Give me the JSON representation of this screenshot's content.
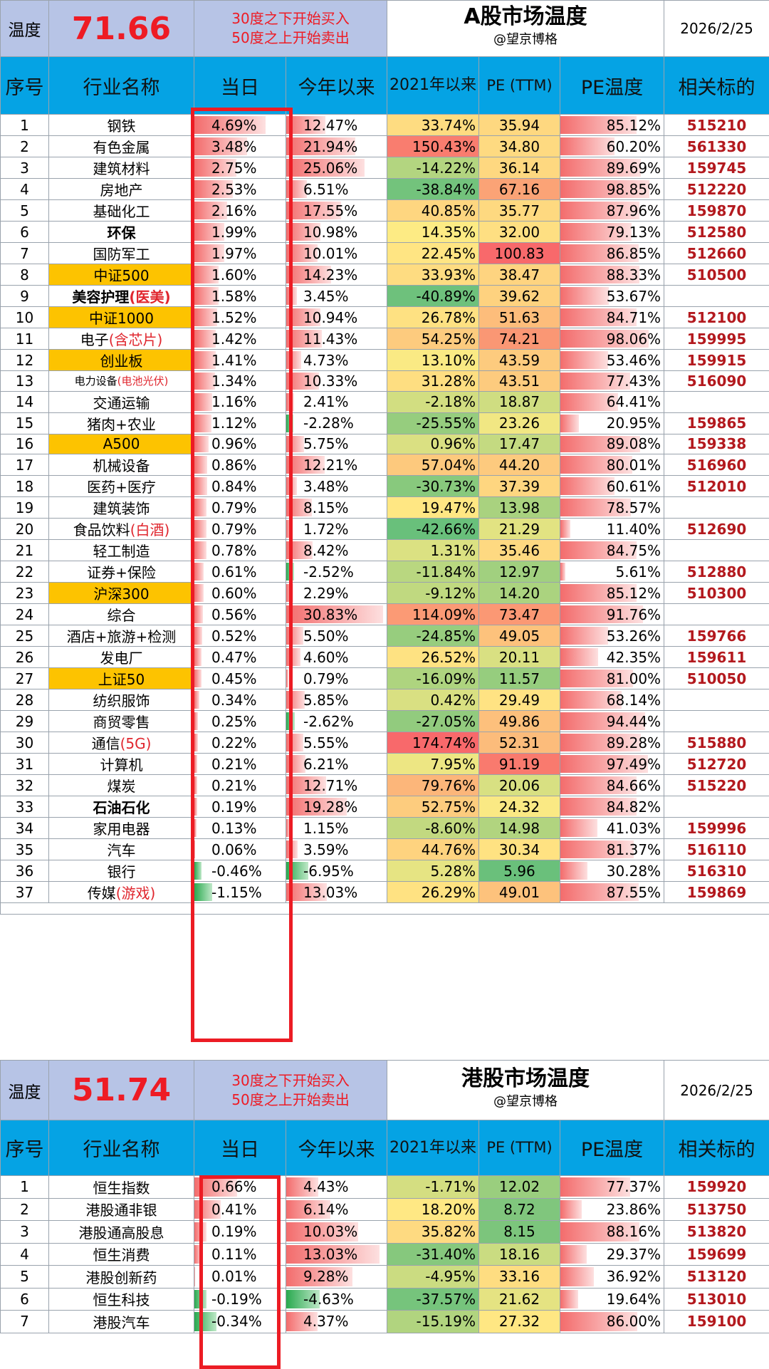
{
  "a_share": {
    "temp_label": "温度",
    "temperature": "71.66",
    "rule_line1": "30度之下开始买入",
    "rule_line2": "50度之上开始卖出",
    "title": "A股市场温度",
    "author": "@望京博格",
    "date": "2026/2/25",
    "headers": [
      "序号",
      "行业名称",
      "当日",
      "今年以来",
      "2021年以来",
      "PE (TTM)",
      "PE温度",
      "相关标的"
    ],
    "rows": [
      {
        "idx": "1",
        "name": "钢铁",
        "hl": "",
        "style": "",
        "day": "4.69%",
        "day_v": 4.69,
        "ytd": "12.47%",
        "ytd_v": 12.47,
        "y21": "33.74%",
        "y21_v": 33.74,
        "pe": "35.94",
        "pe_v": 35.94,
        "pet": "85.12%",
        "pet_v": 85.12,
        "code": "515210"
      },
      {
        "idx": "2",
        "name": "有色金属",
        "hl": "",
        "style": "",
        "day": "3.48%",
        "day_v": 3.48,
        "ytd": "21.94%",
        "ytd_v": 21.94,
        "y21": "150.43%",
        "y21_v": 150.43,
        "pe": "34.80",
        "pe_v": 34.8,
        "pet": "60.20%",
        "pet_v": 60.2,
        "code": "561330"
      },
      {
        "idx": "3",
        "name": "建筑材料",
        "hl": "",
        "style": "",
        "day": "2.75%",
        "day_v": 2.75,
        "ytd": "25.06%",
        "ytd_v": 25.06,
        "y21": "-14.22%",
        "y21_v": -14.22,
        "pe": "36.14",
        "pe_v": 36.14,
        "pet": "89.69%",
        "pet_v": 89.69,
        "code": "159745"
      },
      {
        "idx": "4",
        "name": "房地产",
        "hl": "",
        "style": "",
        "day": "2.53%",
        "day_v": 2.53,
        "ytd": "6.51%",
        "ytd_v": 6.51,
        "y21": "-38.84%",
        "y21_v": -38.84,
        "pe": "67.16",
        "pe_v": 67.16,
        "pet": "98.85%",
        "pet_v": 98.85,
        "code": "512220"
      },
      {
        "idx": "5",
        "name": "基础化工",
        "hl": "",
        "style": "",
        "day": "2.16%",
        "day_v": 2.16,
        "ytd": "17.55%",
        "ytd_v": 17.55,
        "y21": "40.85%",
        "y21_v": 40.85,
        "pe": "35.77",
        "pe_v": 35.77,
        "pet": "87.96%",
        "pet_v": 87.96,
        "code": "159870"
      },
      {
        "idx": "6",
        "name": "环保",
        "hl": "",
        "style": "bold",
        "day": "1.99%",
        "day_v": 1.99,
        "ytd": "10.98%",
        "ytd_v": 10.98,
        "y21": "14.35%",
        "y21_v": 14.35,
        "pe": "32.00",
        "pe_v": 32.0,
        "pet": "79.13%",
        "pet_v": 79.13,
        "code": "512580"
      },
      {
        "idx": "7",
        "name": "国防军工",
        "hl": "",
        "style": "",
        "day": "1.97%",
        "day_v": 1.97,
        "ytd": "10.01%",
        "ytd_v": 10.01,
        "y21": "22.45%",
        "y21_v": 22.45,
        "pe": "100.83",
        "pe_v": 100.83,
        "pet": "86.85%",
        "pet_v": 86.85,
        "code": "512660"
      },
      {
        "idx": "8",
        "name": "中证500",
        "hl": "",
        "style": "orange",
        "day": "1.60%",
        "day_v": 1.6,
        "ytd": "14.23%",
        "ytd_v": 14.23,
        "y21": "33.93%",
        "y21_v": 33.93,
        "pe": "38.47",
        "pe_v": 38.47,
        "pet": "88.33%",
        "pet_v": 88.33,
        "code": "510500"
      },
      {
        "idx": "9",
        "name": "美容护理",
        "hl": "(医美)",
        "style": "bold",
        "day": "1.58%",
        "day_v": 1.58,
        "ytd": "3.45%",
        "ytd_v": 3.45,
        "y21": "-40.89%",
        "y21_v": -40.89,
        "pe": "39.62",
        "pe_v": 39.62,
        "pet": "53.67%",
        "pet_v": 53.67,
        "code": ""
      },
      {
        "idx": "10",
        "name": "中证1000",
        "hl": "",
        "style": "orange",
        "day": "1.52%",
        "day_v": 1.52,
        "ytd": "10.94%",
        "ytd_v": 10.94,
        "y21": "26.78%",
        "y21_v": 26.78,
        "pe": "51.63",
        "pe_v": 51.63,
        "pet": "84.71%",
        "pet_v": 84.71,
        "code": "512100"
      },
      {
        "idx": "11",
        "name": "电子",
        "hl": "(含芯片)",
        "style": "",
        "day": "1.42%",
        "day_v": 1.42,
        "ytd": "11.43%",
        "ytd_v": 11.43,
        "y21": "54.25%",
        "y21_v": 54.25,
        "pe": "74.21",
        "pe_v": 74.21,
        "pet": "98.06%",
        "pet_v": 98.06,
        "code": "159995"
      },
      {
        "idx": "12",
        "name": "创业板",
        "hl": "",
        "style": "orange",
        "day": "1.41%",
        "day_v": 1.41,
        "ytd": "4.73%",
        "ytd_v": 4.73,
        "y21": "13.10%",
        "y21_v": 13.1,
        "pe": "43.59",
        "pe_v": 43.59,
        "pet": "53.46%",
        "pet_v": 53.46,
        "code": "159915"
      },
      {
        "idx": "13",
        "name": "电力设备",
        "hl": "(电池光伏)",
        "style": "tiny",
        "day": "1.34%",
        "day_v": 1.34,
        "ytd": "10.33%",
        "ytd_v": 10.33,
        "y21": "31.28%",
        "y21_v": 31.28,
        "pe": "43.51",
        "pe_v": 43.51,
        "pet": "77.43%",
        "pet_v": 77.43,
        "code": "516090"
      },
      {
        "idx": "14",
        "name": "交通运输",
        "hl": "",
        "style": "",
        "day": "1.16%",
        "day_v": 1.16,
        "ytd": "2.41%",
        "ytd_v": 2.41,
        "y21": "-2.18%",
        "y21_v": -2.18,
        "pe": "18.87",
        "pe_v": 18.87,
        "pet": "64.41%",
        "pet_v": 64.41,
        "code": ""
      },
      {
        "idx": "15",
        "name": "猪肉+农业",
        "hl": "",
        "style": "",
        "day": "1.12%",
        "day_v": 1.12,
        "ytd": "-2.28%",
        "ytd_v": -2.28,
        "y21": "-25.55%",
        "y21_v": -25.55,
        "pe": "23.26",
        "pe_v": 23.26,
        "pet": "20.95%",
        "pet_v": 20.95,
        "code": "159865"
      },
      {
        "idx": "16",
        "name": "A500",
        "hl": "",
        "style": "orange",
        "day": "0.96%",
        "day_v": 0.96,
        "ytd": "5.75%",
        "ytd_v": 5.75,
        "y21": "0.96%",
        "y21_v": 0.96,
        "pe": "17.47",
        "pe_v": 17.47,
        "pet": "89.08%",
        "pet_v": 89.08,
        "code": "159338"
      },
      {
        "idx": "17",
        "name": "机械设备",
        "hl": "",
        "style": "",
        "day": "0.86%",
        "day_v": 0.86,
        "ytd": "12.21%",
        "ytd_v": 12.21,
        "y21": "57.04%",
        "y21_v": 57.04,
        "pe": "44.20",
        "pe_v": 44.2,
        "pet": "80.01%",
        "pet_v": 80.01,
        "code": "516960"
      },
      {
        "idx": "18",
        "name": "医药+医疗",
        "hl": "",
        "style": "",
        "day": "0.84%",
        "day_v": 0.84,
        "ytd": "3.48%",
        "ytd_v": 3.48,
        "y21": "-30.73%",
        "y21_v": -30.73,
        "pe": "37.39",
        "pe_v": 37.39,
        "pet": "60.61%",
        "pet_v": 60.61,
        "code": "512010"
      },
      {
        "idx": "19",
        "name": "建筑装饰",
        "hl": "",
        "style": "",
        "day": "0.79%",
        "day_v": 0.79,
        "ytd": "8.15%",
        "ytd_v": 8.15,
        "y21": "19.47%",
        "y21_v": 19.47,
        "pe": "13.98",
        "pe_v": 13.98,
        "pet": "78.57%",
        "pet_v": 78.57,
        "code": ""
      },
      {
        "idx": "20",
        "name": "食品饮料",
        "hl": "(白酒)",
        "style": "",
        "day": "0.79%",
        "day_v": 0.79,
        "ytd": "1.72%",
        "ytd_v": 1.72,
        "y21": "-42.66%",
        "y21_v": -42.66,
        "pe": "21.29",
        "pe_v": 21.29,
        "pet": "11.40%",
        "pet_v": 11.4,
        "code": "512690"
      },
      {
        "idx": "21",
        "name": "轻工制造",
        "hl": "",
        "style": "",
        "day": "0.78%",
        "day_v": 0.78,
        "ytd": "8.42%",
        "ytd_v": 8.42,
        "y21": "1.31%",
        "y21_v": 1.31,
        "pe": "35.46",
        "pe_v": 35.46,
        "pet": "84.75%",
        "pet_v": 84.75,
        "code": ""
      },
      {
        "idx": "22",
        "name": "证券+保险",
        "hl": "",
        "style": "",
        "day": "0.61%",
        "day_v": 0.61,
        "ytd": "-2.52%",
        "ytd_v": -2.52,
        "y21": "-11.84%",
        "y21_v": -11.84,
        "pe": "12.97",
        "pe_v": 12.97,
        "pet": "5.61%",
        "pet_v": 5.61,
        "code": "512880"
      },
      {
        "idx": "23",
        "name": "沪深300",
        "hl": "",
        "style": "orange",
        "day": "0.60%",
        "day_v": 0.6,
        "ytd": "2.29%",
        "ytd_v": 2.29,
        "y21": "-9.12%",
        "y21_v": -9.12,
        "pe": "14.20",
        "pe_v": 14.2,
        "pet": "85.12%",
        "pet_v": 85.12,
        "code": "510300"
      },
      {
        "idx": "24",
        "name": "综合",
        "hl": "",
        "style": "",
        "day": "0.56%",
        "day_v": 0.56,
        "ytd": "30.83%",
        "ytd_v": 30.83,
        "y21": "114.09%",
        "y21_v": 114.09,
        "pe": "73.47",
        "pe_v": 73.47,
        "pet": "91.76%",
        "pet_v": 91.76,
        "code": ""
      },
      {
        "idx": "25",
        "name": "酒店+旅游+检测",
        "hl": "",
        "style": "",
        "day": "0.52%",
        "day_v": 0.52,
        "ytd": "5.50%",
        "ytd_v": 5.5,
        "y21": "-24.85%",
        "y21_v": -24.85,
        "pe": "49.05",
        "pe_v": 49.05,
        "pet": "53.26%",
        "pet_v": 53.26,
        "code": "159766"
      },
      {
        "idx": "26",
        "name": "发电厂",
        "hl": "",
        "style": "",
        "day": "0.47%",
        "day_v": 0.47,
        "ytd": "4.60%",
        "ytd_v": 4.6,
        "y21": "26.52%",
        "y21_v": 26.52,
        "pe": "20.11",
        "pe_v": 20.11,
        "pet": "42.35%",
        "pet_v": 42.35,
        "code": "159611"
      },
      {
        "idx": "27",
        "name": "上证50",
        "hl": "",
        "style": "orange",
        "day": "0.45%",
        "day_v": 0.45,
        "ytd": "0.79%",
        "ytd_v": 0.79,
        "y21": "-16.09%",
        "y21_v": -16.09,
        "pe": "11.57",
        "pe_v": 11.57,
        "pet": "81.00%",
        "pet_v": 81.0,
        "code": "510050"
      },
      {
        "idx": "28",
        "name": "纺织服饰",
        "hl": "",
        "style": "",
        "day": "0.34%",
        "day_v": 0.34,
        "ytd": "5.85%",
        "ytd_v": 5.85,
        "y21": "0.42%",
        "y21_v": 0.42,
        "pe": "29.49",
        "pe_v": 29.49,
        "pet": "68.14%",
        "pet_v": 68.14,
        "code": ""
      },
      {
        "idx": "29",
        "name": "商贸零售",
        "hl": "",
        "style": "",
        "day": "0.25%",
        "day_v": 0.25,
        "ytd": "-2.62%",
        "ytd_v": -2.62,
        "y21": "-27.05%",
        "y21_v": -27.05,
        "pe": "49.86",
        "pe_v": 49.86,
        "pet": "94.44%",
        "pet_v": 94.44,
        "code": ""
      },
      {
        "idx": "30",
        "name": "通信",
        "hl": "(5G)",
        "style": "",
        "day": "0.22%",
        "day_v": 0.22,
        "ytd": "5.55%",
        "ytd_v": 5.55,
        "y21": "174.74%",
        "y21_v": 174.74,
        "pe": "52.31",
        "pe_v": 52.31,
        "pet": "89.28%",
        "pet_v": 89.28,
        "code": "515880"
      },
      {
        "idx": "31",
        "name": "计算机",
        "hl": "",
        "style": "",
        "day": "0.21%",
        "day_v": 0.21,
        "ytd": "6.21%",
        "ytd_v": 6.21,
        "y21": "7.95%",
        "y21_v": 7.95,
        "pe": "91.19",
        "pe_v": 91.19,
        "pet": "97.49%",
        "pet_v": 97.49,
        "code": "512720"
      },
      {
        "idx": "32",
        "name": "煤炭",
        "hl": "",
        "style": "",
        "day": "0.21%",
        "day_v": 0.21,
        "ytd": "12.71%",
        "ytd_v": 12.71,
        "y21": "79.76%",
        "y21_v": 79.76,
        "pe": "20.06",
        "pe_v": 20.06,
        "pet": "84.66%",
        "pet_v": 84.66,
        "code": "515220"
      },
      {
        "idx": "33",
        "name": "石油石化",
        "hl": "",
        "style": "bold",
        "day": "0.19%",
        "day_v": 0.19,
        "ytd": "19.28%",
        "ytd_v": 19.28,
        "y21": "52.75%",
        "y21_v": 52.75,
        "pe": "24.32",
        "pe_v": 24.32,
        "pet": "84.82%",
        "pet_v": 84.82,
        "code": ""
      },
      {
        "idx": "34",
        "name": "家用电器",
        "hl": "",
        "style": "",
        "day": "0.13%",
        "day_v": 0.13,
        "ytd": "1.15%",
        "ytd_v": 1.15,
        "y21": "-8.60%",
        "y21_v": -8.6,
        "pe": "14.98",
        "pe_v": 14.98,
        "pet": "41.03%",
        "pet_v": 41.03,
        "code": "159996"
      },
      {
        "idx": "35",
        "name": "汽车",
        "hl": "",
        "style": "",
        "day": "0.06%",
        "day_v": 0.06,
        "ytd": "3.59%",
        "ytd_v": 3.59,
        "y21": "44.76%",
        "y21_v": 44.76,
        "pe": "30.34",
        "pe_v": 30.34,
        "pet": "81.37%",
        "pet_v": 81.37,
        "code": "516110"
      },
      {
        "idx": "36",
        "name": "银行",
        "hl": "",
        "style": "",
        "day": "-0.46%",
        "day_v": -0.46,
        "ytd": "-6.95%",
        "ytd_v": -6.95,
        "y21": "5.28%",
        "y21_v": 5.28,
        "pe": "5.96",
        "pe_v": 5.96,
        "pet": "30.28%",
        "pet_v": 30.28,
        "code": "516310"
      },
      {
        "idx": "37",
        "name": "传媒",
        "hl": "(游戏)",
        "style": "",
        "day": "-1.15%",
        "day_v": -1.15,
        "ytd": "13.03%",
        "ytd_v": 13.03,
        "y21": "26.29%",
        "y21_v": 26.29,
        "pe": "49.01",
        "pe_v": 49.01,
        "pet": "87.55%",
        "pet_v": 87.55,
        "code": "159869"
      }
    ]
  },
  "hk_share": {
    "temp_label": "温度",
    "temperature": "51.74",
    "rule_line1": "30度之下开始买入",
    "rule_line2": "50度之上开始卖出",
    "title": "港股市场温度",
    "author": "@望京博格",
    "date": "2026/2/25",
    "headers": [
      "序号",
      "行业名称",
      "当日",
      "今年以来",
      "2021年以来",
      "PE (TTM)",
      "PE温度",
      "相关标的"
    ],
    "rows": [
      {
        "idx": "1",
        "name": "恒生指数",
        "hl": "",
        "style": "",
        "day": "0.66%",
        "day_v": 0.66,
        "ytd": "4.43%",
        "ytd_v": 4.43,
        "y21": "-1.71%",
        "y21_v": -1.71,
        "pe": "12.02",
        "pe_v": 12.02,
        "pet": "77.37%",
        "pet_v": 77.37,
        "code": "159920"
      },
      {
        "idx": "2",
        "name": "港股通非银",
        "hl": "",
        "style": "",
        "day": "0.41%",
        "day_v": 0.41,
        "ytd": "6.14%",
        "ytd_v": 6.14,
        "y21": "18.20%",
        "y21_v": 18.2,
        "pe": "8.72",
        "pe_v": 8.72,
        "pet": "23.86%",
        "pet_v": 23.86,
        "code": "513750"
      },
      {
        "idx": "3",
        "name": "港股通高股息",
        "hl": "",
        "style": "",
        "day": "0.19%",
        "day_v": 0.19,
        "ytd": "10.03%",
        "ytd_v": 10.03,
        "y21": "35.82%",
        "y21_v": 35.82,
        "pe": "8.15",
        "pe_v": 8.15,
        "pet": "88.16%",
        "pet_v": 88.16,
        "code": "513820"
      },
      {
        "idx": "4",
        "name": "恒生消费",
        "hl": "",
        "style": "",
        "day": "0.11%",
        "day_v": 0.11,
        "ytd": "13.03%",
        "ytd_v": 13.03,
        "y21": "-31.40%",
        "y21_v": -31.4,
        "pe": "18.16",
        "pe_v": 18.16,
        "pet": "29.37%",
        "pet_v": 29.37,
        "code": "159699"
      },
      {
        "idx": "5",
        "name": "港股创新药",
        "hl": "",
        "style": "",
        "day": "0.01%",
        "day_v": 0.01,
        "ytd": "9.28%",
        "ytd_v": 9.28,
        "y21": "-4.95%",
        "y21_v": -4.95,
        "pe": "33.16",
        "pe_v": 33.16,
        "pet": "36.92%",
        "pet_v": 36.92,
        "code": "513120"
      },
      {
        "idx": "6",
        "name": "恒生科技",
        "hl": "",
        "style": "",
        "day": "-0.19%",
        "day_v": -0.19,
        "ytd": "-4.63%",
        "ytd_v": -4.63,
        "y21": "-37.57%",
        "y21_v": -37.57,
        "pe": "21.62",
        "pe_v": 21.62,
        "pet": "19.64%",
        "pet_v": 19.64,
        "code": "513010"
      },
      {
        "idx": "7",
        "name": "港股汽车",
        "hl": "",
        "style": "",
        "day": "-0.34%",
        "day_v": -0.34,
        "ytd": "4.37%",
        "ytd_v": 4.37,
        "y21": "-15.19%",
        "y21_v": -15.19,
        "pe": "27.32",
        "pe_v": 27.32,
        "pet": "86.00%",
        "pet_v": 86.0,
        "code": "159100"
      }
    ]
  }
}
